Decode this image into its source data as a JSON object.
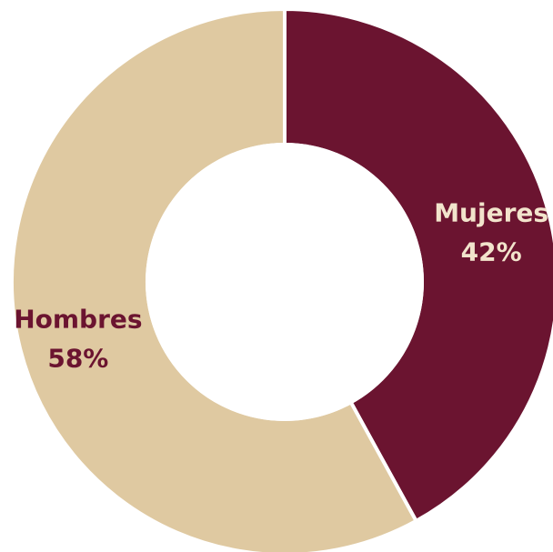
{
  "chart_data": {
    "type": "pie",
    "donut": true,
    "title": "",
    "legend": "none",
    "slices": [
      {
        "label": "Mujeres",
        "value": 42,
        "display": "42%",
        "color": "#6b1430",
        "label_color": "#f2e4cc"
      },
      {
        "label": "Hombres",
        "value": 58,
        "display": "58%",
        "color": "#dfc9a1",
        "label_color": "#6b1430"
      }
    ]
  }
}
